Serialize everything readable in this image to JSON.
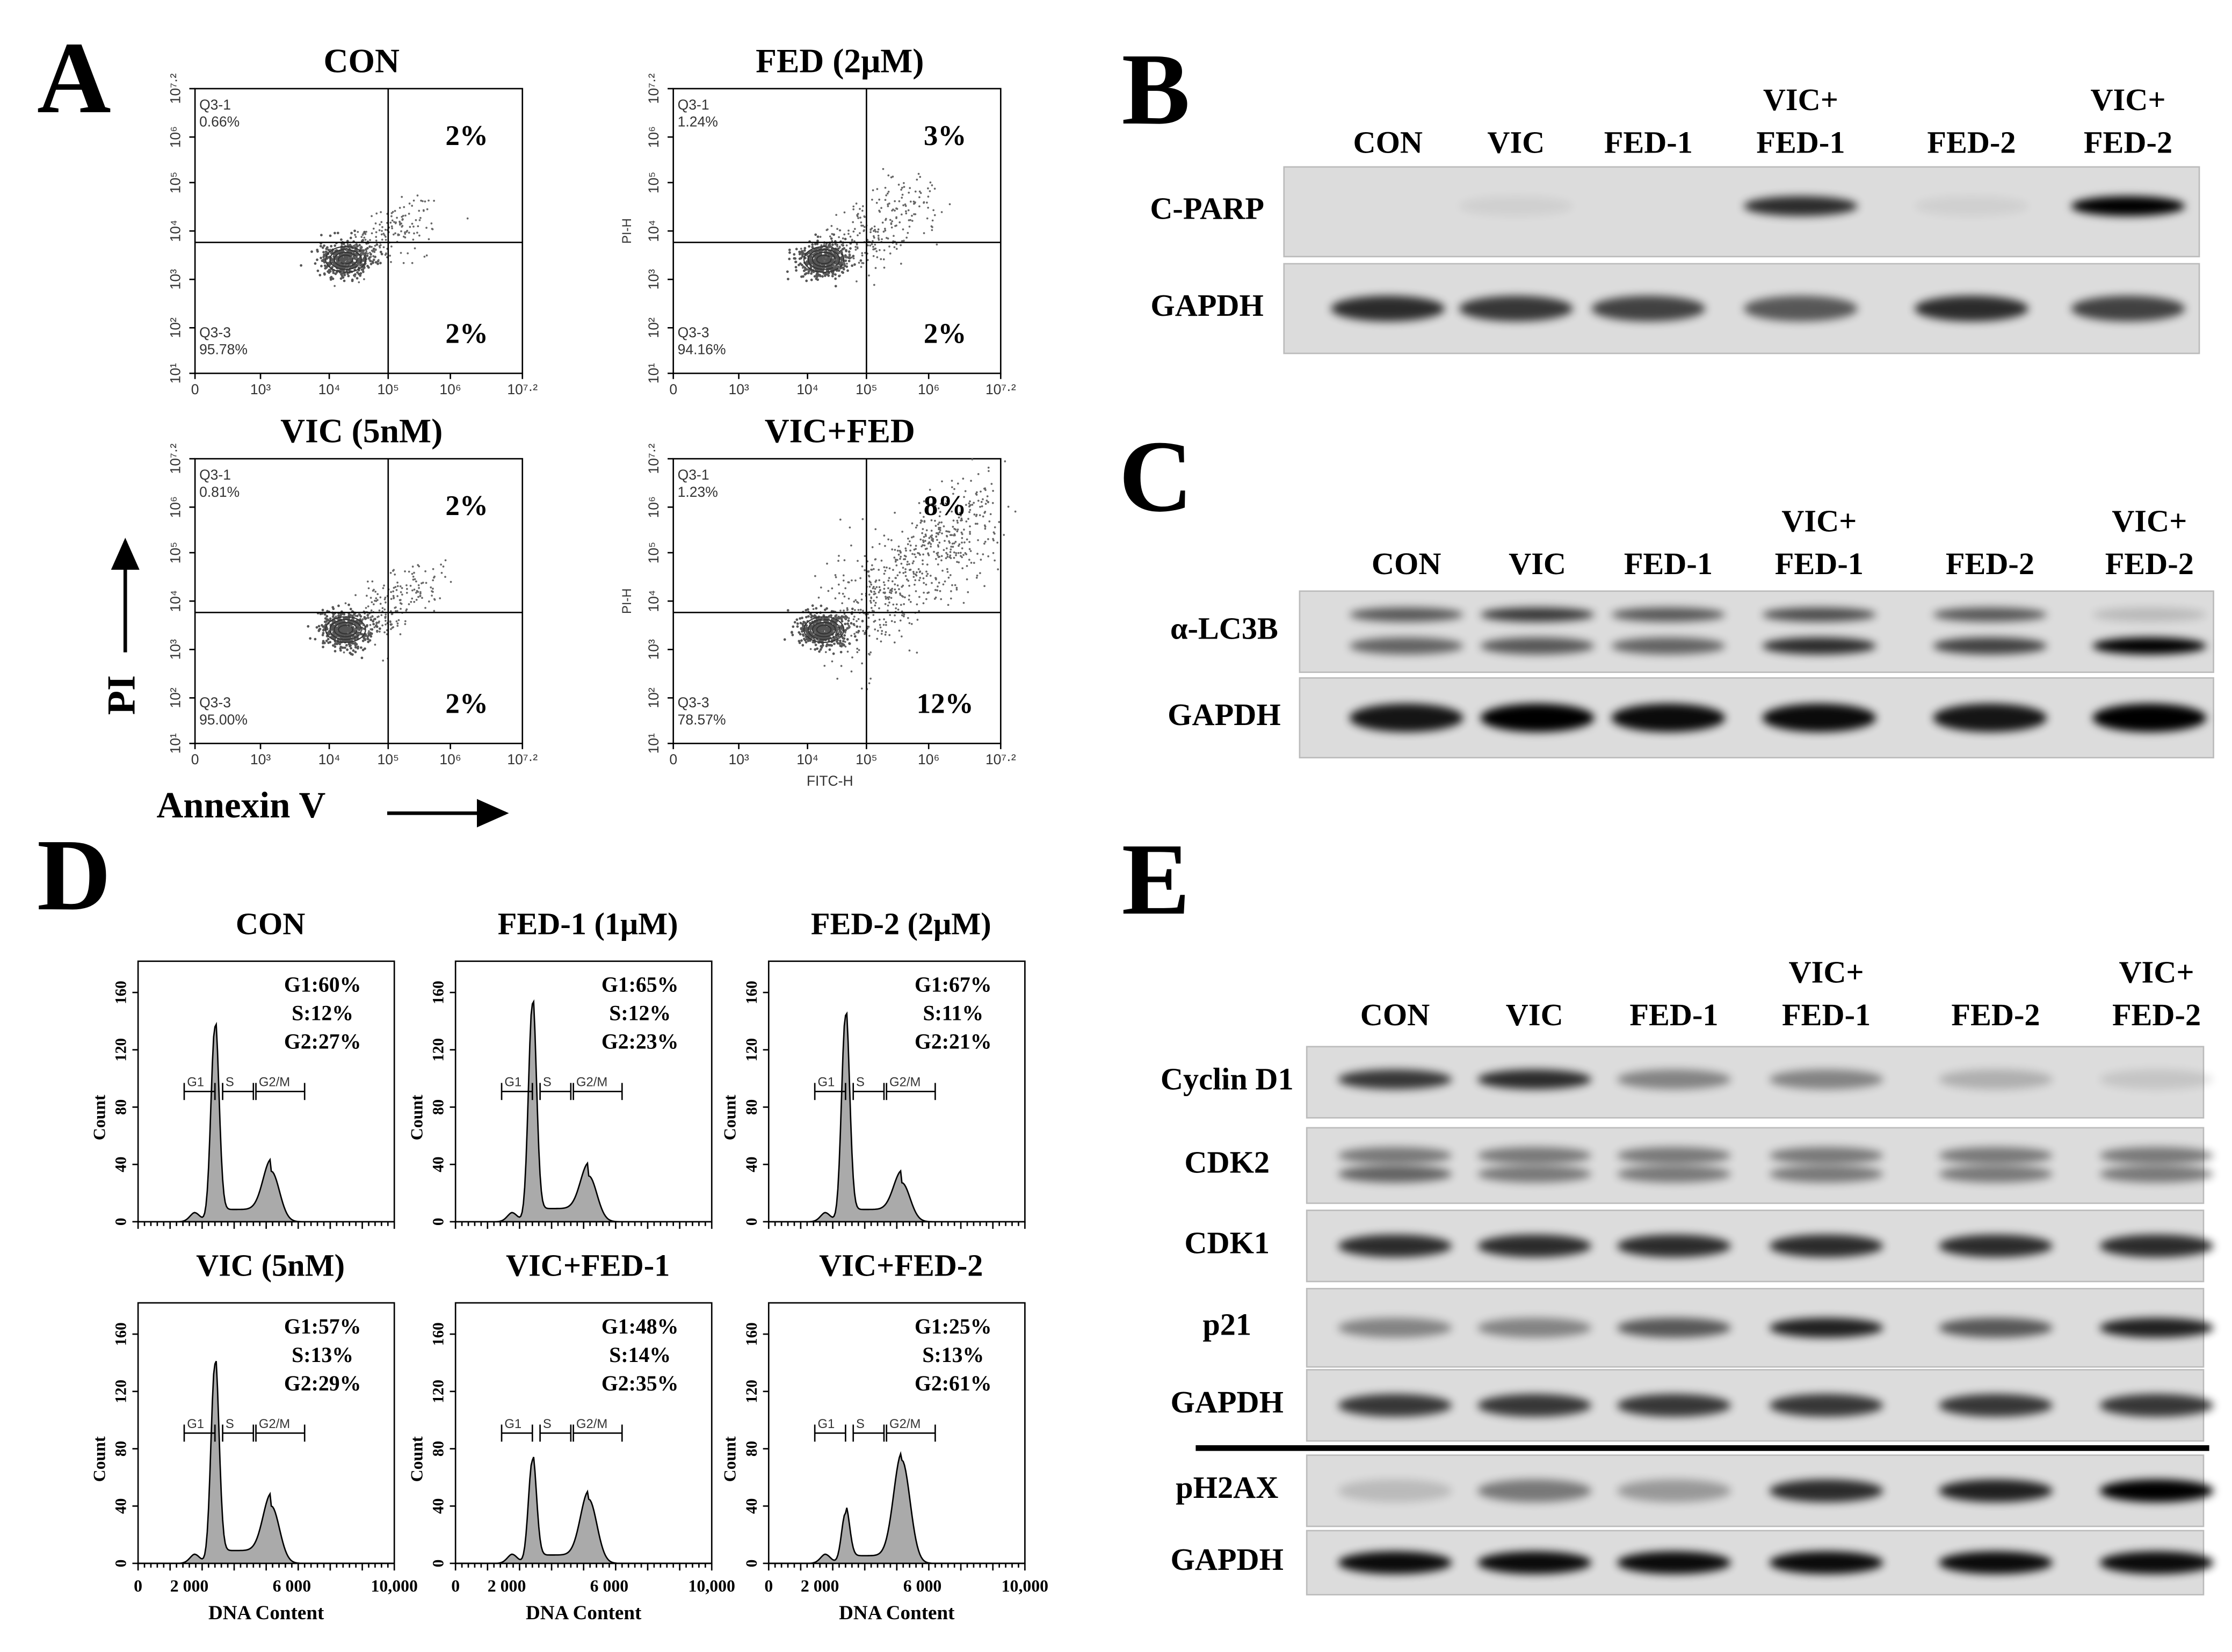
{
  "panels": {
    "a": {
      "letter": "A",
      "y_axis_title": "PI",
      "x_axis_title": "Annexin V",
      "x_ticks": [
        "0",
        "10³",
        "10⁴",
        "10⁵",
        "10⁶",
        "10⁷·²"
      ],
      "y_ticks": [
        "10¹",
        "10²",
        "10³",
        "10⁴",
        "10⁵",
        "10⁶",
        "10⁷·²"
      ],
      "plots": [
        {
          "title": "CON",
          "q1_label": "Q3-1",
          "q1_value": "0.66%",
          "q3_label": "Q3-3",
          "q3_value": "95.78%",
          "upper_right": "2%",
          "lower_right": "2%"
        },
        {
          "title": "FED (2μM)",
          "q1_label": "Q3-1",
          "q1_value": "1.24%",
          "q3_label": "Q3-3",
          "q3_value": "94.16%",
          "upper_right": "3%",
          "lower_right": "2%",
          "y_label": "PI-H"
        },
        {
          "title": "VIC (5nM)",
          "q1_label": "Q3-1",
          "q1_value": "0.81%",
          "q3_label": "Q3-3",
          "q3_value": "95.00%",
          "upper_right": "2%",
          "lower_right": "2%"
        },
        {
          "title": "VIC+FED",
          "q1_label": "Q3-1",
          "q1_value": "1.23%",
          "q3_label": "Q3-3",
          "q3_value": "78.57%",
          "upper_right": "8%",
          "lower_right": "12%",
          "y_label": "PI-H",
          "x_label": "FITC-H"
        }
      ]
    },
    "b": {
      "letter": "B",
      "lanes": [
        [
          "CON"
        ],
        [
          "VIC"
        ],
        [
          "FED-1"
        ],
        [
          "VIC+",
          "FED-1"
        ],
        [
          "FED-2"
        ],
        [
          "VIC+",
          "FED-2"
        ]
      ],
      "rows": [
        {
          "label": "C-PARP"
        },
        {
          "label": "GAPDH"
        }
      ]
    },
    "c": {
      "letter": "C",
      "lanes": [
        [
          "CON"
        ],
        [
          "VIC"
        ],
        [
          "FED-1"
        ],
        [
          "VIC+",
          "FED-1"
        ],
        [
          "FED-2"
        ],
        [
          "VIC+",
          "FED-2"
        ]
      ],
      "rows": [
        {
          "label": "α-LC3B"
        },
        {
          "label": "GAPDH"
        }
      ]
    },
    "d": {
      "letter": "D",
      "y_axis_title": "Count",
      "x_axis_title": "DNA Content",
      "x_ticks": [
        "0",
        "2 000",
        "6 000",
        "10,000"
      ],
      "y_ticks": [
        "0",
        "40",
        "80",
        "120",
        "160"
      ],
      "gates": [
        "G1",
        "S",
        "G2/M"
      ],
      "plots": [
        {
          "title": "CON",
          "stats": [
            "G1:60%",
            "S:12%",
            "G2:27%"
          ]
        },
        {
          "title": "FED-1 (1μM)",
          "stats": [
            "G1:65%",
            "S:12%",
            "G2:23%"
          ]
        },
        {
          "title": "FED-2 (2μM)",
          "stats": [
            "G1:67%",
            "S:11%",
            "G2:21%"
          ]
        },
        {
          "title": "VIC (5nM)",
          "stats": [
            "G1:57%",
            "S:13%",
            "G2:29%"
          ]
        },
        {
          "title": "VIC+FED-1",
          "stats": [
            "G1:48%",
            "S:14%",
            "G2:35%"
          ]
        },
        {
          "title": "VIC+FED-2",
          "stats": [
            "G1:25%",
            "S:13%",
            "G2:61%"
          ]
        }
      ]
    },
    "e": {
      "letter": "E",
      "lanes": [
        [
          "CON"
        ],
        [
          "VIC"
        ],
        [
          "FED-1"
        ],
        [
          "VIC+",
          "FED-1"
        ],
        [
          "FED-2"
        ],
        [
          "VIC+",
          "FED-2"
        ]
      ],
      "rows": [
        {
          "label": "Cyclin D1"
        },
        {
          "label": "CDK2"
        },
        {
          "label": "CDK1"
        },
        {
          "label": "p21"
        },
        {
          "label": "GAPDH"
        },
        {
          "label": "pH2AX"
        },
        {
          "label": "GAPDH"
        }
      ]
    }
  }
}
